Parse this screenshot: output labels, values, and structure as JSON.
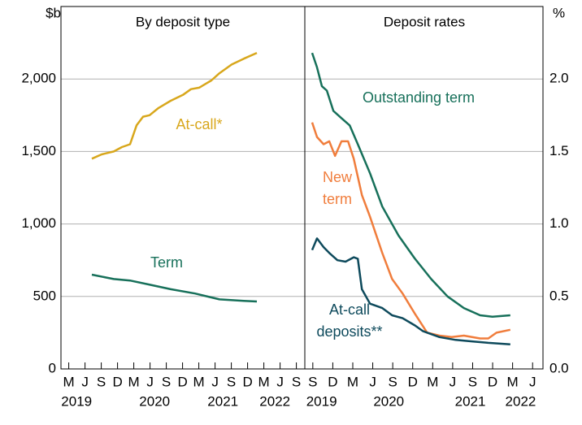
{
  "chart_data": [
    {
      "type": "line",
      "title": "By deposit type",
      "y_label": "$b",
      "xlim": [
        2019.08,
        2022.83
      ],
      "ylim": [
        0,
        2500
      ],
      "yticks": [
        0,
        500,
        {
          "value": 1000,
          "label": "1,000"
        },
        {
          "value": 1500,
          "label": "1,500"
        },
        {
          "value": 2000,
          "label": "2,000"
        }
      ],
      "xticks": [
        {
          "value": 2019.2,
          "label": "M"
        },
        {
          "value": 2019.45,
          "label": "J"
        },
        {
          "value": 2019.7,
          "label": "S"
        },
        {
          "value": 2019.95,
          "label": "D"
        },
        {
          "value": 2020.2,
          "label": "M"
        },
        {
          "value": 2020.45,
          "label": "J"
        },
        {
          "value": 2020.7,
          "label": "S"
        },
        {
          "value": 2020.95,
          "label": "D"
        },
        {
          "value": 2021.2,
          "label": "M"
        },
        {
          "value": 2021.45,
          "label": "J"
        },
        {
          "value": 2021.7,
          "label": "S"
        },
        {
          "value": 2021.95,
          "label": "D"
        },
        {
          "value": 2022.2,
          "label": "M"
        },
        {
          "value": 2022.45,
          "label": "J"
        },
        {
          "value": 2022.7,
          "label": "S"
        }
      ],
      "year_ticks": [
        {
          "value": 2019.32,
          "label": "2019"
        },
        {
          "value": 2020.52,
          "label": "2020"
        },
        {
          "value": 2021.57,
          "label": "2021"
        },
        {
          "value": 2022.37,
          "label": "2022"
        }
      ],
      "grid": true,
      "series": [
        {
          "name": "At-call*",
          "color": "#d8a71c",
          "x": [
            2019.555,
            2019.705,
            2019.893,
            2020.018,
            2020.143,
            2020.243,
            2020.343,
            2020.443,
            2020.58,
            2020.768,
            2020.955,
            2021.08,
            2021.205,
            2021.393,
            2021.518,
            2021.705,
            2021.893,
            2022.093
          ],
          "values": [
            1450,
            1480,
            1500,
            1530,
            1550,
            1680,
            1740,
            1750,
            1800,
            1850,
            1890,
            1930,
            1940,
            1990,
            2040,
            2100,
            2140,
            2180
          ]
        },
        {
          "name": "Term",
          "color": "#17705a",
          "x": [
            2019.555,
            2019.893,
            2020.143,
            2020.455,
            2020.768,
            2021.143,
            2021.518,
            2021.893,
            2022.093
          ],
          "values": [
            650,
            620,
            610,
            580,
            550,
            520,
            480,
            470,
            465
          ]
        }
      ]
    },
    {
      "type": "line",
      "title": "Deposit rates",
      "y_label": "%",
      "xlim": [
        2019.6,
        2022.58
      ],
      "ylim": [
        0,
        2.5
      ],
      "yticks": [
        {
          "value": 0,
          "label": "0.0"
        },
        {
          "value": 0.5,
          "label": "0.5"
        },
        {
          "value": 1,
          "label": "1.0"
        },
        {
          "value": 1.5,
          "label": "1.5"
        },
        {
          "value": 2,
          "label": "2.0"
        }
      ],
      "xticks": [
        {
          "value": 2019.7,
          "label": "S"
        },
        {
          "value": 2019.95,
          "label": "D"
        },
        {
          "value": 2020.2,
          "label": "M"
        },
        {
          "value": 2020.45,
          "label": "J"
        },
        {
          "value": 2020.7,
          "label": "S"
        },
        {
          "value": 2020.95,
          "label": "D"
        },
        {
          "value": 2021.2,
          "label": "M"
        },
        {
          "value": 2021.45,
          "label": "J"
        },
        {
          "value": 2021.7,
          "label": "S"
        },
        {
          "value": 2021.95,
          "label": "D"
        },
        {
          "value": 2022.2,
          "label": "M"
        },
        {
          "value": 2022.45,
          "label": "J"
        }
      ],
      "year_ticks": [
        {
          "value": 2019.81,
          "label": "2019"
        },
        {
          "value": 2020.65,
          "label": "2020"
        },
        {
          "value": 2021.67,
          "label": "2021"
        },
        {
          "value": 2022.3,
          "label": "2022"
        }
      ],
      "grid": true,
      "series": [
        {
          "name": "Outstanding term",
          "color": "#17705a",
          "x": [
            2019.692,
            2019.753,
            2019.814,
            2019.876,
            2019.957,
            2020.059,
            2020.161,
            2020.263,
            2020.416,
            2020.569,
            2020.773,
            2020.978,
            2021.182,
            2021.386,
            2021.59,
            2021.794,
            2021.947,
            2022.171
          ],
          "values": [
            2.18,
            2.08,
            1.95,
            1.92,
            1.78,
            1.73,
            1.68,
            1.55,
            1.35,
            1.12,
            0.92,
            0.76,
            0.62,
            0.5,
            0.42,
            0.37,
            0.36,
            0.37
          ]
        },
        {
          "name": "New term",
          "color": "#f07d3c",
          "x": [
            2019.692,
            2019.753,
            2019.835,
            2019.906,
            2019.978,
            2020.059,
            2020.141,
            2020.212,
            2020.314,
            2020.416,
            2020.569,
            2020.692,
            2020.824,
            2020.978,
            2021.131,
            2021.284,
            2021.437,
            2021.59,
            2021.794,
            2021.896,
            2021.998,
            2022.171
          ],
          "values": [
            1.7,
            1.6,
            1.55,
            1.57,
            1.47,
            1.57,
            1.57,
            1.45,
            1.2,
            1.05,
            0.8,
            0.62,
            0.52,
            0.38,
            0.25,
            0.23,
            0.22,
            0.23,
            0.21,
            0.21,
            0.25,
            0.27
          ]
        },
        {
          "name": "At-call deposits**",
          "color": "#0e4a5c",
          "x": [
            2019.692,
            2019.753,
            2019.835,
            2019.906,
            2020.008,
            2020.11,
            2020.212,
            2020.263,
            2020.314,
            2020.416,
            2020.569,
            2020.692,
            2020.824,
            2020.978,
            2021.08,
            2021.284,
            2021.488,
            2021.692,
            2021.896,
            2022.171
          ],
          "values": [
            0.82,
            0.9,
            0.84,
            0.8,
            0.75,
            0.74,
            0.77,
            0.76,
            0.55,
            0.45,
            0.42,
            0.37,
            0.35,
            0.3,
            0.26,
            0.22,
            0.2,
            0.19,
            0.18,
            0.17
          ]
        }
      ]
    }
  ]
}
